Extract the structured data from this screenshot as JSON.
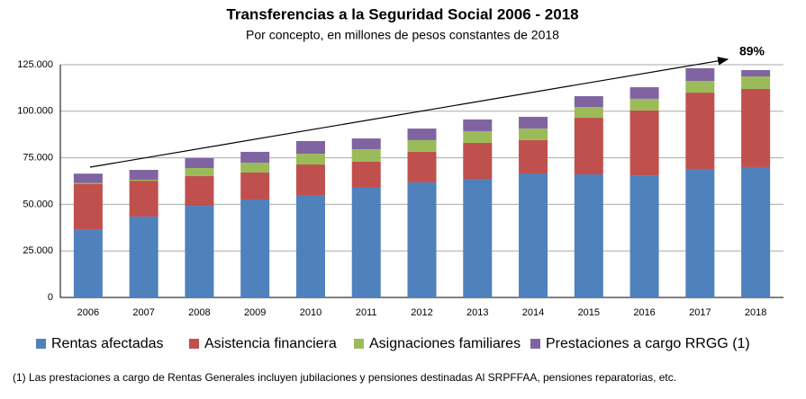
{
  "chart_data": {
    "type": "stacked-bar",
    "title": "Transferencias a la Seguridad Social 2006 - 2018",
    "subtitle": "Por concepto, en millones de pesos constantes de 2018",
    "annotation": "89%",
    "footnote": "(1) Las prestaciones a cargo de Rentas Generales incluyen jubilaciones y pensiones destinadas Al SRPFFAA,  pensiones reparatorias, etc.",
    "categories": [
      "2006",
      "2007",
      "2008",
      "2009",
      "2010",
      "2011",
      "2012",
      "2013",
      "2014",
      "2015",
      "2016",
      "2017",
      "2018"
    ],
    "series": [
      {
        "name": "Rentas afectadas",
        "color": "#4f81bd",
        "values": [
          36500,
          43400,
          49200,
          52600,
          55000,
          58900,
          61800,
          63700,
          66600,
          66100,
          65600,
          69000,
          70000
        ]
      },
      {
        "name": "Asistencia financiera",
        "color": "#c0504d",
        "values": [
          24500,
          19300,
          16000,
          14500,
          16400,
          14000,
          16400,
          19300,
          17900,
          30400,
          34800,
          41000,
          42000
        ]
      },
      {
        "name": "Asignaciones familiares",
        "color": "#9bbb59",
        "values": [
          500,
          500,
          4300,
          5300,
          5800,
          6700,
          6300,
          6300,
          6200,
          5800,
          6300,
          6300,
          6700
        ]
      },
      {
        "name": "Prestaciones a cargo RRGG (1)",
        "color": "#8064a2",
        "values": [
          5000,
          5300,
          5300,
          5800,
          6800,
          5800,
          6200,
          6300,
          6300,
          5800,
          6200,
          6800,
          3400
        ]
      }
    ],
    "ylim": [
      0,
      125000
    ],
    "yticks": [
      0,
      {
        "value": 25000,
        "label": "25.000"
      },
      {
        "value": 50000,
        "label": "50.000"
      },
      {
        "value": 75000,
        "label": "75.000"
      },
      {
        "value": 100000,
        "label": "100.000"
      },
      {
        "value": 125000,
        "label": "125.000"
      }
    ],
    "grid": true
  }
}
